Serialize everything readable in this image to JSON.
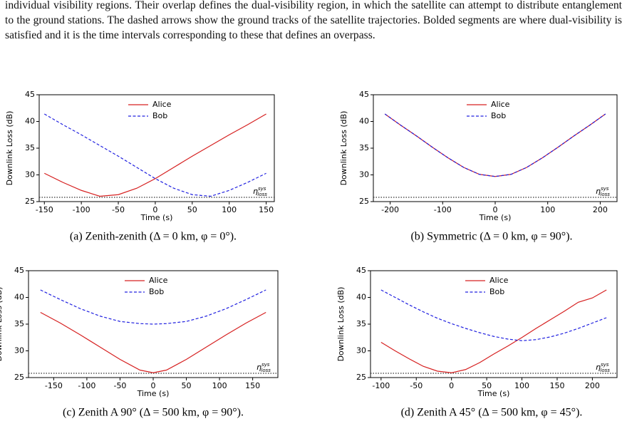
{
  "body": {
    "text": "individual visibility regions. Their overlap defines the dual-visibility region, in which the satellite can attempt to distribute entanglement to the ground stations. The dashed arrows show the ground tracks of the satellite trajectories. Bolded segments are where dual-visibility is satisfied and it is the time intervals corresponding to these that defines an overpass."
  },
  "chart_data": [
    {
      "type": "line",
      "caption": "(a) Zenith-zenith (Δ = 0 km, φ = 0°).",
      "xlabel": "Time (s)",
      "ylabel": "Downlink Loss (dB)",
      "x": [
        -150,
        -125,
        -100,
        -75,
        -50,
        -25,
        0,
        25,
        50,
        75,
        100,
        125,
        150
      ],
      "series": [
        {
          "name": "Alice",
          "color": "#d62020",
          "dash": false,
          "values": [
            30.3,
            28.6,
            27.1,
            26.0,
            26.3,
            27.5,
            29.3,
            31.4,
            33.5,
            35.5,
            37.5,
            39.4,
            41.4
          ]
        },
        {
          "name": "Bob",
          "color": "#2020e0",
          "dash": true,
          "values": [
            41.4,
            39.4,
            37.5,
            35.5,
            33.5,
            31.4,
            29.3,
            27.5,
            26.3,
            26.0,
            27.1,
            28.6,
            30.3
          ]
        }
      ],
      "xlim": [
        -157,
        161
      ],
      "ylim": [
        25,
        45
      ],
      "xticks": [
        -150,
        -100,
        -50,
        0,
        50,
        100,
        150
      ],
      "yticks": [
        25,
        30,
        35,
        40,
        45
      ],
      "threshold": {
        "value": 25.8,
        "symbol": "η",
        "sup": "sys",
        "sub": "loss"
      }
    },
    {
      "type": "line",
      "caption": "(b) Symmetric (Δ = 0  km, φ = 90°).",
      "xlabel": "Time (s)",
      "ylabel": "Downlink Loss (dB)",
      "x": [
        -210,
        -180,
        -150,
        -120,
        -90,
        -60,
        -30,
        0,
        30,
        60,
        90,
        120,
        150,
        180,
        210
      ],
      "series": [
        {
          "name": "Alice",
          "color": "#d62020",
          "dash": false,
          "values": [
            41.4,
            39.3,
            37.3,
            35.2,
            33.2,
            31.4,
            30.1,
            29.7,
            30.1,
            31.4,
            33.2,
            35.2,
            37.3,
            39.3,
            41.4
          ]
        },
        {
          "name": "Bob",
          "color": "#2020e0",
          "dash": true,
          "values": [
            41.4,
            39.3,
            37.3,
            35.2,
            33.2,
            31.4,
            30.1,
            29.7,
            30.1,
            31.4,
            33.2,
            35.2,
            37.3,
            39.3,
            41.4
          ]
        }
      ],
      "xlim": [
        -232,
        232
      ],
      "ylim": [
        25,
        45
      ],
      "xticks": [
        -200,
        -100,
        0,
        100,
        200
      ],
      "yticks": [
        25,
        30,
        35,
        40,
        45
      ],
      "threshold": {
        "value": 25.8,
        "symbol": "η",
        "sup": "sys",
        "sub": "loss"
      }
    },
    {
      "type": "line",
      "caption": "(c) Zenith A 90° (Δ = 500 km, φ = 90°).",
      "xlabel": "Time (s)",
      "ylabel": "Downlink Loss (dB)",
      "x": [
        -170,
        -140,
        -110,
        -80,
        -50,
        -20,
        0,
        20,
        50,
        80,
        110,
        140,
        170
      ],
      "series": [
        {
          "name": "Alice",
          "color": "#d62020",
          "dash": false,
          "values": [
            37.2,
            35.2,
            33.0,
            30.7,
            28.4,
            26.4,
            25.9,
            26.4,
            28.4,
            30.7,
            33.0,
            35.2,
            37.2
          ]
        },
        {
          "name": "Bob",
          "color": "#2020e0",
          "dash": true,
          "values": [
            41.4,
            39.6,
            37.9,
            36.5,
            35.5,
            35.1,
            35.0,
            35.1,
            35.5,
            36.5,
            37.9,
            39.6,
            41.4
          ]
        }
      ],
      "xlim": [
        -188,
        188
      ],
      "ylim": [
        25,
        45
      ],
      "xticks": [
        -150,
        -100,
        -50,
        0,
        50,
        100,
        150
      ],
      "yticks": [
        25,
        30,
        35,
        40,
        45
      ],
      "threshold": {
        "value": 25.8,
        "symbol": "η",
        "sup": "sys",
        "sub": "loss"
      }
    },
    {
      "type": "line",
      "caption": "(d) Zenith A 45° (Δ = 500 km, φ = 45°).",
      "xlabel": "Time (s)",
      "ylabel": "Downlink Loss (dB)",
      "x": [
        -100,
        -80,
        -60,
        -40,
        -20,
        0,
        20,
        40,
        60,
        80,
        100,
        120,
        140,
        160,
        180,
        200,
        220
      ],
      "series": [
        {
          "name": "Alice",
          "color": "#d62020",
          "dash": false,
          "values": [
            31.6,
            30.0,
            28.5,
            27.1,
            26.2,
            25.9,
            26.5,
            27.8,
            29.4,
            30.9,
            32.5,
            34.2,
            35.8,
            37.4,
            39.1,
            39.9,
            41.4
          ]
        },
        {
          "name": "Bob",
          "color": "#2020e0",
          "dash": true,
          "values": [
            41.4,
            40.0,
            38.6,
            37.3,
            36.1,
            35.1,
            34.2,
            33.4,
            32.7,
            32.2,
            31.9,
            32.1,
            32.6,
            33.3,
            34.2,
            35.2,
            36.2
          ]
        }
      ],
      "xlim": [
        -115,
        235
      ],
      "ylim": [
        25,
        45
      ],
      "xticks": [
        -100,
        -50,
        0,
        50,
        100,
        150,
        200
      ],
      "yticks": [
        25,
        30,
        35,
        40,
        45
      ],
      "threshold": {
        "value": 25.8,
        "symbol": "η",
        "sup": "sys",
        "sub": "loss"
      }
    }
  ]
}
